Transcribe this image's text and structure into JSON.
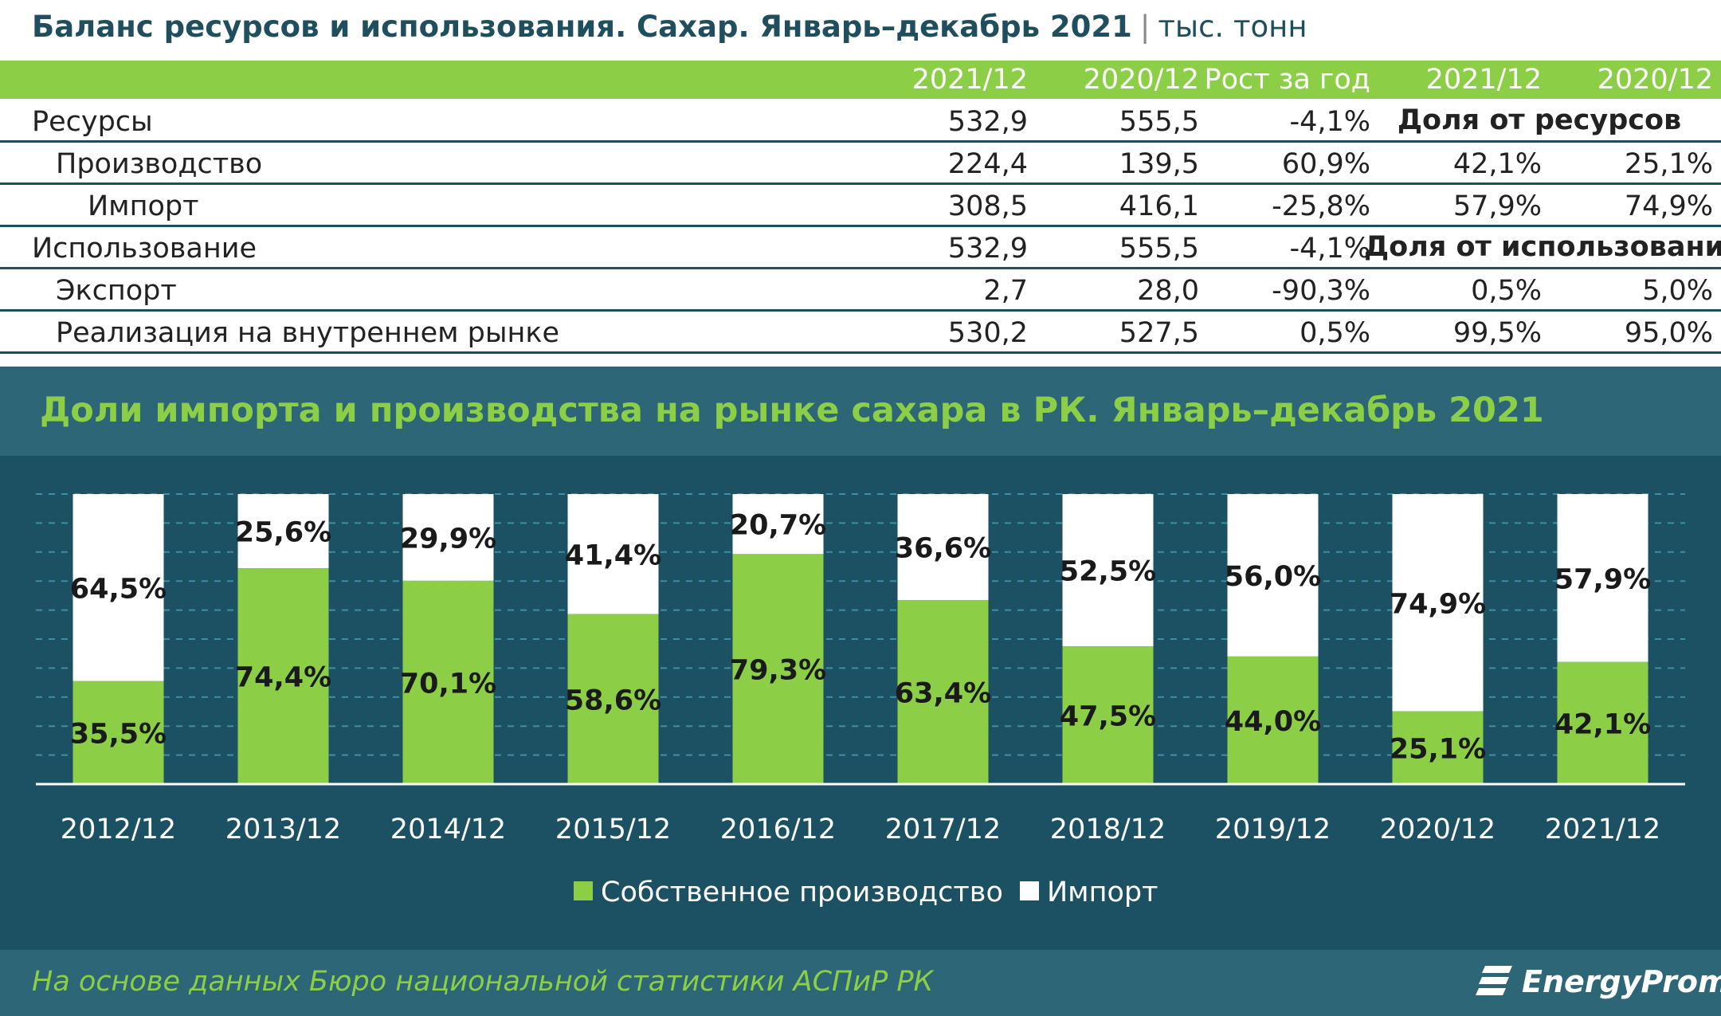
{
  "header": {
    "title": "Баланс ресурсов и использования. Сахар. Январь–декабрь 2021",
    "separator": "|",
    "unit": "тыс. тонн"
  },
  "table": {
    "columns": [
      "2021/12",
      "2020/12",
      "Рост за год",
      "2021/12",
      "2020/12"
    ],
    "rows": [
      {
        "label": "Ресурсы",
        "v1": "532,9",
        "v2": "555,5",
        "growth": "-4,1%",
        "note": "Доля от ресурсов"
      },
      {
        "label": "Производство",
        "v1": "224,4",
        "v2": "139,5",
        "growth": "60,9%",
        "s1": "42,1%",
        "s2": "25,1%"
      },
      {
        "label": "Импорт",
        "v1": "308,5",
        "v2": "416,1",
        "growth": "-25,8%",
        "s1": "57,9%",
        "s2": "74,9%"
      },
      {
        "label": "Использование",
        "v1": "532,9",
        "v2": "555,5",
        "growth": "-4,1%",
        "note": "Доля от использования"
      },
      {
        "label": "Экспорт",
        "v1": "2,7",
        "v2": "28,0",
        "growth": "-90,3%",
        "s1": "0,5%",
        "s2": "5,0%"
      },
      {
        "label": "Реализация на внутреннем рынке",
        "v1": "530,2",
        "v2": "527,5",
        "growth": "0,5%",
        "s1": "99,5%",
        "s2": "95,0%"
      }
    ]
  },
  "chart_data": {
    "type": "bar",
    "stacked": true,
    "title": "Доли импорта и производства на рынке сахара в РК. Январь–декабрь 2021",
    "categories": [
      "2012/12",
      "2013/12",
      "2014/12",
      "2015/12",
      "2016/12",
      "2017/12",
      "2018/12",
      "2019/12",
      "2020/12",
      "2021/12"
    ],
    "series": [
      {
        "name": "Собственное производство",
        "color": "#8ccf47",
        "values": [
          35.5,
          74.4,
          70.1,
          58.6,
          79.3,
          63.4,
          47.5,
          44.0,
          25.1,
          42.1
        ],
        "labels": [
          "35,5%",
          "74,4%",
          "70,1%",
          "58,6%",
          "79,3%",
          "63,4%",
          "47,5%",
          "44,0%",
          "25,1%",
          "42,1%"
        ]
      },
      {
        "name": "Импорт",
        "color": "#ffffff",
        "values": [
          64.5,
          25.6,
          29.9,
          41.4,
          20.7,
          36.6,
          52.5,
          56.0,
          74.9,
          57.9
        ],
        "labels": [
          "64,5%",
          "25,6%",
          "29,9%",
          "41,4%",
          "20,7%",
          "36,6%",
          "52,5%",
          "56,0%",
          "74,9%",
          "57,9%"
        ]
      }
    ],
    "ylim": [
      0,
      100
    ],
    "xlabel": "",
    "ylabel": "",
    "legend": "bottom-center",
    "grid": true
  },
  "footer": {
    "source": "На основе данных Бюро национальной статистики АСПиР РК",
    "logo_text": "EnergyProm"
  }
}
